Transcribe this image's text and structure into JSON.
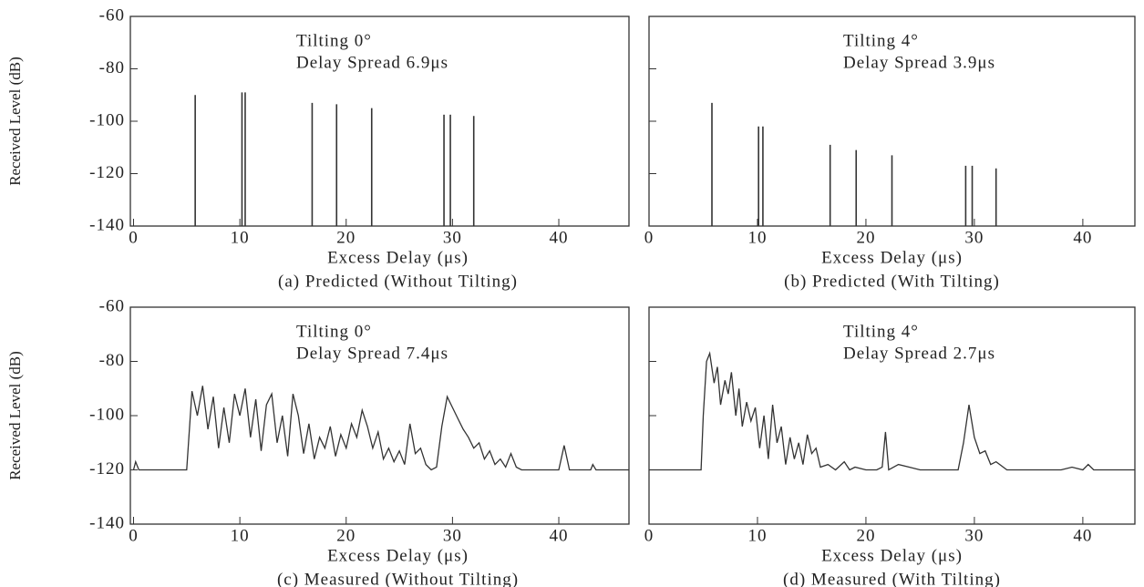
{
  "chart_data": [
    {
      "type": "stem",
      "caption": "(a) Predicted (Without Tilting)",
      "xlabel": "Excess Delay (μs)",
      "ylabel": "Received Level (dB)",
      "annotations": [
        "Tilting 0°",
        "Delay Spread 6.9μs"
      ],
      "x": [
        5.8,
        10.2,
        10.5,
        16.8,
        19.1,
        22.4,
        29.2,
        29.8,
        32
      ],
      "values": [
        -90,
        -89,
        -89,
        -93,
        -93.5,
        -95,
        -97.5,
        -97.5,
        -98
      ],
      "xlim": [
        -0.3,
        46.6
      ],
      "ylim": [
        -140,
        -60
      ],
      "xticks": [
        0,
        10,
        20,
        30,
        40
      ],
      "yticks": [
        -60,
        -80,
        -100,
        -120,
        -140
      ],
      "color": "#333333"
    },
    {
      "type": "stem",
      "caption": "(b) Predicted (With Tilting)",
      "xlabel": "Excess Delay (μs)",
      "annotations": [
        "Tilting 4°",
        "Delay Spread 3.9μs"
      ],
      "x": [
        5.8,
        10.1,
        10.5,
        16.7,
        19.1,
        22.4,
        29.2,
        29.8,
        32
      ],
      "values": [
        -93,
        -102,
        -102,
        -109,
        -111,
        -113,
        -117,
        -117,
        -118
      ],
      "xlim": [
        0,
        44.8
      ],
      "ylim": [
        -140,
        -60
      ],
      "xticks": [
        0,
        10,
        20,
        30,
        40
      ],
      "color": "#333333"
    },
    {
      "type": "line",
      "caption": "(c) Measured (Without Tilting)",
      "xlabel": "Excess Delay (μs)",
      "ylabel": "Received  Level (dB)",
      "annotations": [
        "Tilting 0°",
        "Delay Spread 7.4μs"
      ],
      "x": [
        0,
        0.2,
        0.5,
        5,
        5.5,
        6,
        6.5,
        7,
        7.5,
        8,
        8.5,
        9,
        9.5,
        10,
        10.5,
        11,
        11.5,
        12,
        12.5,
        13,
        13.5,
        14,
        14.5,
        15,
        15.5,
        16,
        16.5,
        17,
        17.5,
        18,
        18.5,
        19,
        19.5,
        20,
        20.5,
        21,
        21.5,
        22,
        22.5,
        23,
        23.5,
        24,
        24.5,
        25,
        25.5,
        26,
        26.5,
        27,
        27.5,
        28,
        28.5,
        29,
        29.5,
        30,
        30.5,
        31,
        31.5,
        32,
        32.5,
        33,
        33.5,
        34,
        34.5,
        35,
        35.5,
        36,
        36.5,
        40,
        40.5,
        41,
        43,
        43.2,
        43.5,
        46.6
      ],
      "values": [
        -120,
        -117,
        -120,
        -120,
        -91,
        -100,
        -89,
        -105,
        -93,
        -112,
        -97,
        -110,
        -92,
        -100,
        -90,
        -108,
        -94,
        -113,
        -96,
        -92,
        -110,
        -100,
        -115,
        -92,
        -100,
        -114,
        -103,
        -116,
        -108,
        -112,
        -104,
        -115,
        -107,
        -112,
        -103,
        -108,
        -98,
        -104,
        -112,
        -106,
        -116,
        -112,
        -117,
        -113,
        -118,
        -103,
        -114,
        -112,
        -118,
        -120,
        -119,
        -104,
        -93,
        -97,
        -101,
        -105,
        -108,
        -112,
        -110,
        -116,
        -113,
        -118,
        -116,
        -119,
        -114,
        -119,
        -120,
        -120,
        -111,
        -120,
        -120,
        -118,
        -120,
        -120
      ],
      "xlim": [
        -0.3,
        46.6
      ],
      "ylim": [
        -140,
        -60
      ],
      "xticks": [
        0,
        10,
        20,
        30,
        40
      ],
      "yticks": [
        -60,
        -80,
        -100,
        -120,
        -140
      ],
      "color": "#333333"
    },
    {
      "type": "line",
      "caption": "(d) Measured (With Tilting)",
      "xlabel": "Excess Delay (μs)",
      "annotations": [
        "Tilting 4°",
        "Delay Spread 2.7μs"
      ],
      "x": [
        0,
        4.8,
        5.0,
        5.3,
        5.6,
        6,
        6.3,
        6.6,
        7,
        7.3,
        7.6,
        8,
        8.3,
        8.6,
        9,
        9.4,
        9.8,
        10.2,
        10.6,
        11,
        11.4,
        11.8,
        12.2,
        12.6,
        13,
        13.4,
        13.8,
        14.2,
        14.6,
        15,
        15.4,
        15.8,
        16.5,
        17.2,
        18,
        18.5,
        19,
        20,
        21,
        21.5,
        21.8,
        22.1,
        23,
        24,
        25,
        27,
        28.5,
        29,
        29.5,
        30,
        30.5,
        31,
        31.5,
        32,
        33,
        35,
        38,
        39,
        40,
        40.5,
        41,
        44.8
      ],
      "values": [
        -120,
        -120,
        -100,
        -80,
        -77,
        -88,
        -82,
        -96,
        -87,
        -92,
        -84,
        -100,
        -90,
        -104,
        -95,
        -102,
        -97,
        -112,
        -100,
        -116,
        -96,
        -110,
        -104,
        -118,
        -108,
        -116,
        -110,
        -118,
        -107,
        -114,
        -112,
        -119,
        -118,
        -120,
        -117,
        -120,
        -119,
        -120,
        -120,
        -119,
        -106,
        -120,
        -118,
        -119,
        -120,
        -120,
        -120,
        -110,
        -96,
        -108,
        -114,
        -113,
        -118,
        -117,
        -120,
        -120,
        -120,
        -119,
        -120,
        -118,
        -120,
        -120
      ],
      "xlim": [
        0,
        44.8
      ],
      "ylim": [
        -140,
        -60
      ],
      "xticks": [
        0,
        10,
        20,
        30,
        40
      ],
      "color": "#333333"
    }
  ]
}
